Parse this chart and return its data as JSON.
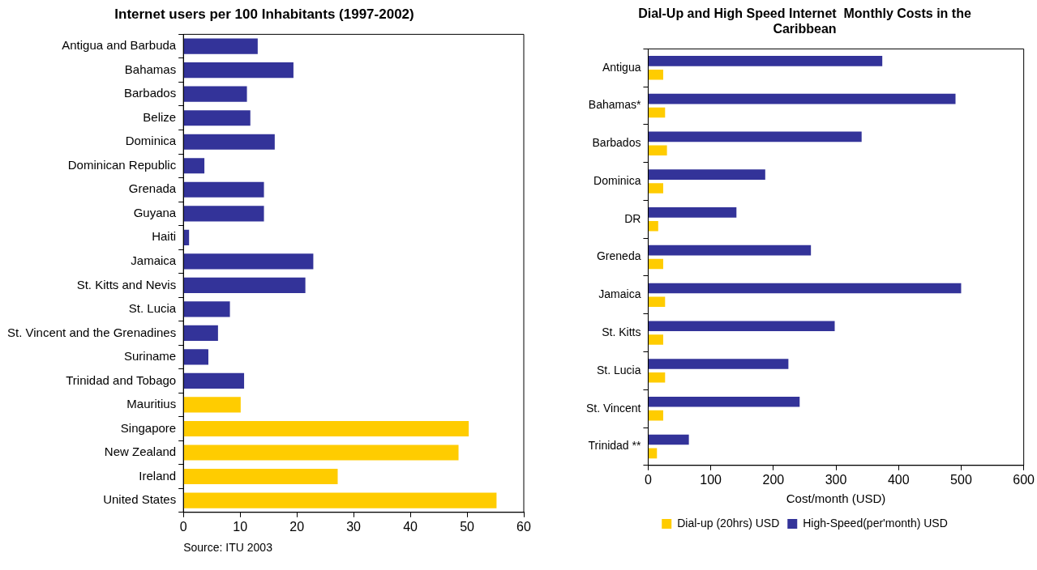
{
  "chart_data": [
    {
      "type": "bar",
      "orientation": "horizontal",
      "title": "Internet users per 100 Inhabitants (1997-2002)",
      "categories": [
        "Antigua and Barbuda",
        "Bahamas",
        "Barbados",
        "Belize",
        "Dominica",
        "Dominican Republic",
        "Grenada",
        "Guyana",
        "Haiti",
        "Jamaica",
        "St. Kitts and Nevis",
        "St. Lucia",
        "St. Vincent and the Grenadines",
        "Suriname",
        "Trinidad and Tobago",
        "Mauritius",
        "Singapore",
        "New Zealand",
        "Ireland",
        "United States"
      ],
      "values": [
        13.1,
        19.4,
        11.2,
        11.8,
        16.1,
        3.7,
        14.2,
        14.2,
        1.0,
        22.9,
        21.5,
        8.2,
        6.1,
        4.4,
        10.7,
        10.1,
        50.3,
        48.5,
        27.2,
        55.2
      ],
      "colors": [
        "#333399",
        "#333399",
        "#333399",
        "#333399",
        "#333399",
        "#333399",
        "#333399",
        "#333399",
        "#333399",
        "#333399",
        "#333399",
        "#333399",
        "#333399",
        "#333399",
        "#333399",
        "#ffcc00",
        "#ffcc00",
        "#ffcc00",
        "#ffcc00",
        "#ffcc00"
      ],
      "xlim": [
        0,
        60
      ],
      "xticks": [
        0,
        10,
        20,
        30,
        40,
        50,
        60
      ],
      "grid": false,
      "legend": false,
      "annotations": [
        "Source: ITU 2003"
      ]
    },
    {
      "type": "bar",
      "orientation": "horizontal",
      "title": "Dial-Up and High Speed Internet  Monthly Costs in the Caribbean",
      "xlabel": "Cost/month (USD)",
      "categories": [
        "Antigua",
        "Bahamas*",
        "Barbados",
        "Dominica",
        "DR",
        "Greneda",
        "Jamaica",
        "St. Kitts",
        "St. Lucia",
        "St. Vincent",
        "Trinidad **"
      ],
      "series": [
        {
          "name": "High-Speed(per'month) USD",
          "color": "#333399",
          "values": [
            374,
            491,
            341,
            187,
            141,
            260,
            500,
            298,
            224,
            242,
            65
          ]
        },
        {
          "name": "Dial-up (20hrs) USD",
          "color": "#ffcc00",
          "values": [
            24,
            27,
            30,
            24,
            16,
            24,
            27,
            24,
            27,
            24,
            14
          ]
        }
      ],
      "xlim": [
        0,
        600
      ],
      "xticks": [
        0,
        100,
        200,
        300,
        400,
        500,
        600
      ],
      "grid": false,
      "legend": "bottom"
    }
  ]
}
